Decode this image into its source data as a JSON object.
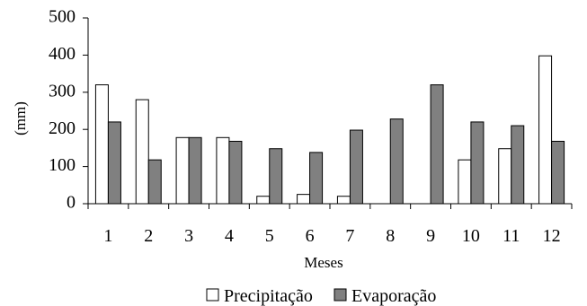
{
  "chart_data": {
    "type": "bar",
    "categories": [
      "1",
      "2",
      "3",
      "4",
      "5",
      "6",
      "7",
      "8",
      "9",
      "10",
      "11",
      "12"
    ],
    "series": [
      {
        "name": "Precipitação",
        "values": [
          320,
          280,
          178,
          178,
          20,
          25,
          20,
          0,
          0,
          118,
          148,
          398
        ],
        "color": "#ffffff"
      },
      {
        "name": "Evaporação",
        "values": [
          220,
          118,
          178,
          168,
          148,
          138,
          198,
          228,
          320,
          220,
          210,
          168
        ],
        "color": "#808080"
      }
    ],
    "xlabel": "Meses",
    "ylabel": "(mm)",
    "ylim": [
      0,
      500
    ],
    "yticks": [
      "0",
      "100",
      "200",
      "300",
      "400",
      "500"
    ],
    "legend": "bottom",
    "grid": false
  }
}
